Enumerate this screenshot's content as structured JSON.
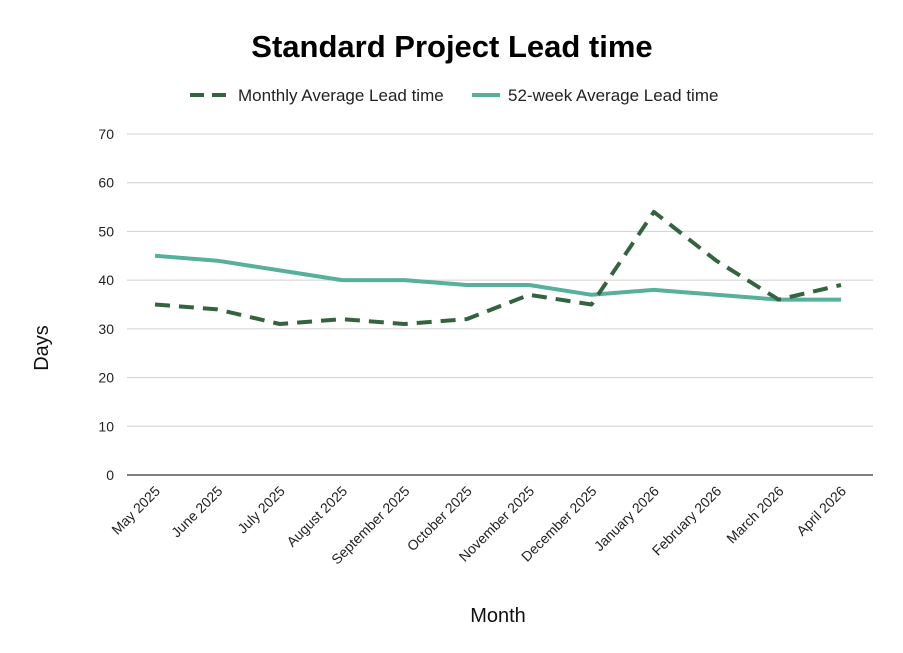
{
  "chart_data": {
    "type": "line",
    "title": "Standard Project Lead time",
    "xlabel": "Month",
    "ylabel": "Days",
    "ylim": [
      0,
      70
    ],
    "yticks": [
      0,
      10,
      20,
      30,
      40,
      50,
      60,
      70
    ],
    "grid": true,
    "legend_position": "top",
    "categories": [
      "May 2025",
      "June 2025",
      "July 2025",
      "August 2025",
      "September 2025",
      "October 2025",
      "November 2025",
      "December 2025",
      "January 2026",
      "February 2026",
      "March 2026",
      "April 2026"
    ],
    "series": [
      {
        "name": "Monthly Average Lead time",
        "style": "dashed",
        "color": "#33633f",
        "values": [
          35,
          34,
          31,
          32,
          31,
          32,
          37,
          35,
          54,
          44,
          36,
          39
        ]
      },
      {
        "name": "52-week Average Lead time",
        "style": "solid",
        "color": "#56b09a",
        "values": [
          45,
          44,
          42,
          40,
          40,
          39,
          39,
          37,
          38,
          37,
          36,
          36
        ]
      }
    ]
  }
}
